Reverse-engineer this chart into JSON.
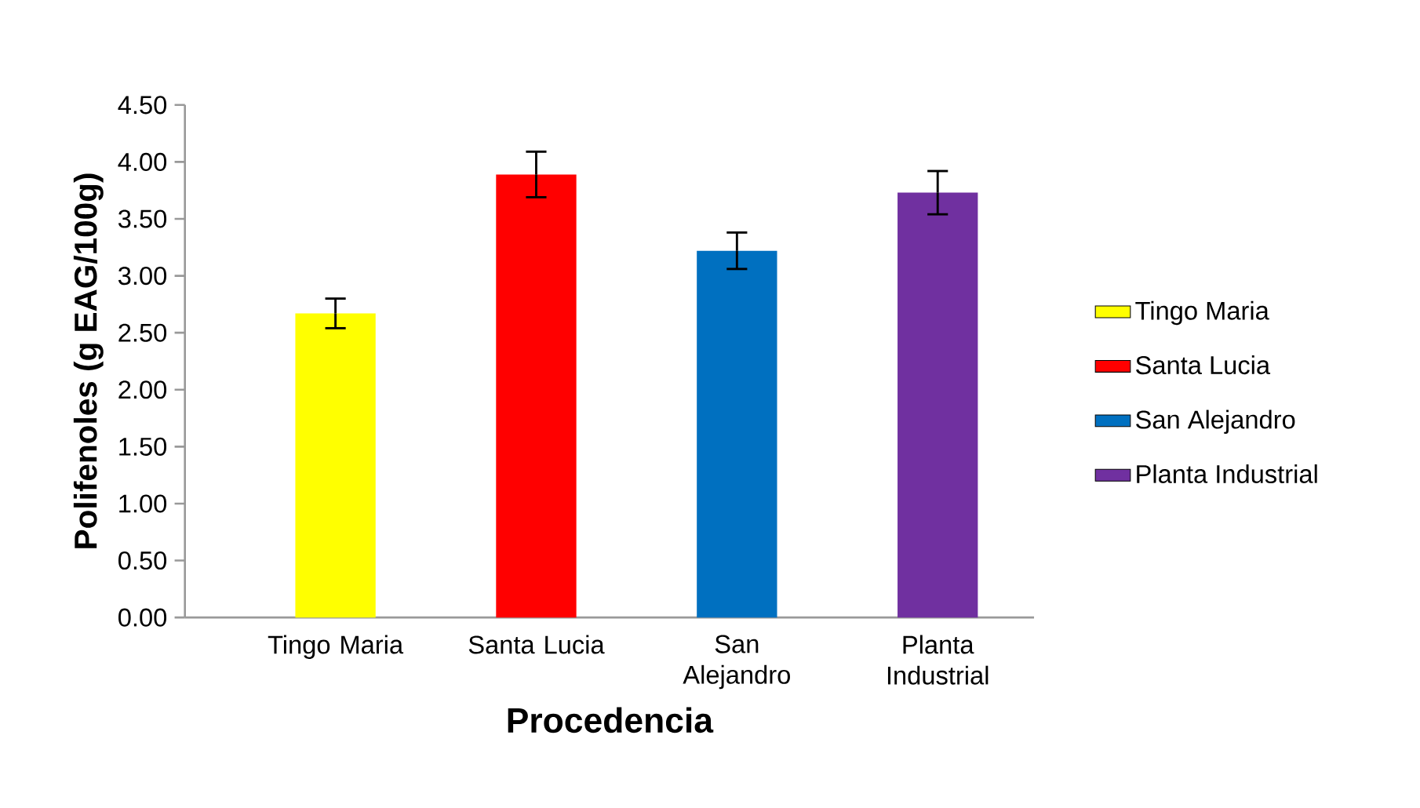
{
  "chart_data": {
    "type": "bar",
    "xlabel": "Procedencia",
    "ylabel": "Polifenoles (g EAG/100g)",
    "categories": [
      "Tingo Maria",
      "Santa Lucia",
      "San Alejandro",
      "Planta Industrial"
    ],
    "series": [
      {
        "name": "Tingo Maria",
        "color": "#ffff00",
        "values": [
          2.67,
          null,
          null,
          null
        ],
        "errors": [
          0.13,
          null,
          null,
          null
        ]
      },
      {
        "name": "Santa Lucia",
        "color": "#ff0000",
        "values": [
          null,
          3.89,
          null,
          null
        ],
        "errors": [
          null,
          0.2,
          null,
          null
        ]
      },
      {
        "name": "San Alejandro",
        "color": "#0070c0",
        "values": [
          null,
          null,
          3.22,
          null
        ],
        "errors": [
          null,
          null,
          0.16,
          null
        ]
      },
      {
        "name": "Planta Industrial",
        "color": "#7030a0",
        "values": [
          null,
          null,
          null,
          3.73
        ],
        "errors": [
          null,
          null,
          null,
          0.19
        ]
      }
    ],
    "ylim": [
      0,
      4.5
    ],
    "yticks": [
      {
        "value": 0,
        "label": "0.00"
      },
      {
        "value": 0.5,
        "label": "0.50"
      },
      {
        "value": 1,
        "label": "1.00"
      },
      {
        "value": 1.5,
        "label": "1.50"
      },
      {
        "value": 2,
        "label": "2.00"
      },
      {
        "value": 2.5,
        "label": "2.50"
      },
      {
        "value": 3,
        "label": "3.00"
      },
      {
        "value": 3.5,
        "label": "3.50"
      },
      {
        "value": 4,
        "label": "4.00"
      },
      {
        "value": 4.5,
        "label": "4.50"
      }
    ],
    "legend": "right"
  }
}
